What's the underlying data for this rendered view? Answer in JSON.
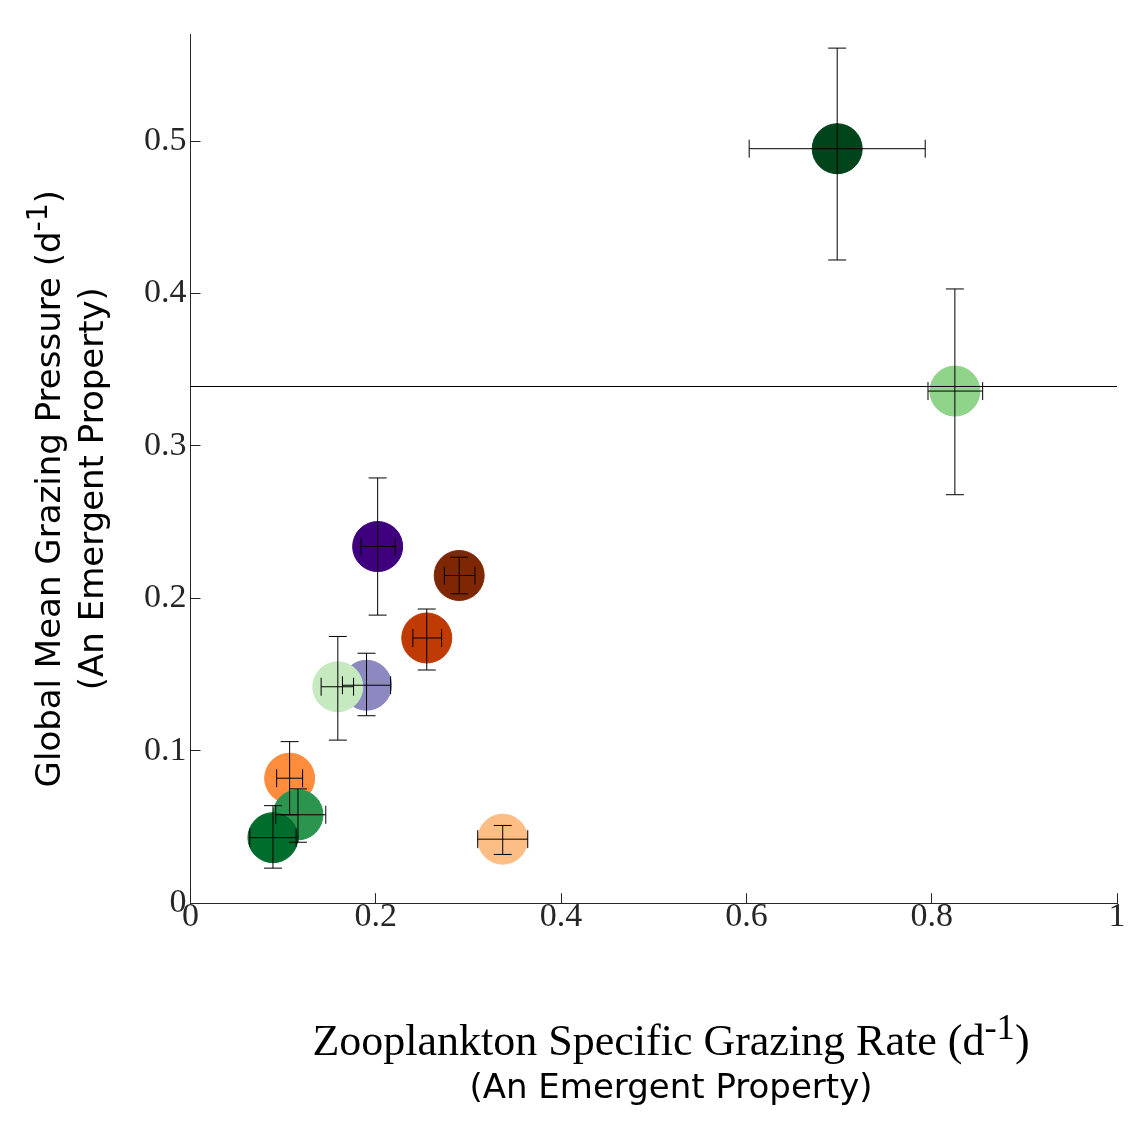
{
  "chart_data": {
    "type": "scatter",
    "xlabel": "Zooplankton Specific Grazing Rate (d$^{-1}$)\n(An Emergent Property)",
    "ylabel": "Global Mean Grazing Pressure (d$^{-1}$)\n(An Emergent Property)",
    "x": [
      0.698,
      0.825,
      0.202,
      0.29,
      0.255,
      0.19,
      0.159,
      0.107,
      0.116,
      0.089,
      0.337
    ],
    "values": [
      0.495,
      0.336,
      0.234,
      0.215,
      0.174,
      0.143,
      0.142,
      0.082,
      0.058,
      0.043,
      0.042
    ],
    "colors": [
      "#00441b",
      "#90d38a",
      "#3f007d",
      "#7f2704",
      "#bf3b03",
      "#8c89c0",
      "#c7e9c0",
      "#fd8d3c",
      "#2b9550",
      "#006d2c",
      "#fdbe85"
    ],
    "errors": [
      [
        0.422,
        0.561
      ],
      [
        0.268,
        0.403
      ],
      [
        0.189,
        0.279
      ],
      [
        0.203,
        0.227
      ],
      [
        0.153,
        0.193
      ],
      [
        0.123,
        0.164
      ],
      [
        0.107,
        0.175
      ],
      [
        0.058,
        0.106
      ],
      [
        0.04,
        0.075
      ],
      [
        0.023,
        0.064
      ],
      [
        0.032,
        0.051
      ]
    ],
    "xerrors": [
      [
        0.603,
        0.793
      ],
      [
        0.796,
        0.855
      ],
      [
        0.184,
        0.221
      ],
      [
        0.274,
        0.307
      ],
      [
        0.24,
        0.271
      ],
      [
        0.164,
        0.216
      ],
      [
        0.141,
        0.176
      ],
      [
        0.093,
        0.121
      ],
      [
        0.092,
        0.146
      ],
      [
        0.064,
        0.114
      ],
      [
        0.31,
        0.364
      ]
    ],
    "marker": "circle",
    "grid": false,
    "legend": false,
    "xlim": [
      0,
      1
    ],
    "xticks": [
      0,
      0.2,
      0.4,
      0.6,
      0.8,
      1
    ],
    "ylim": [
      0,
      0.57
    ],
    "yticks": [
      0,
      0.1,
      0.2,
      0.3,
      0.4,
      0.5
    ],
    "ref_lines": [
      {
        "axis": "y",
        "value": 0.339
      }
    ]
  }
}
